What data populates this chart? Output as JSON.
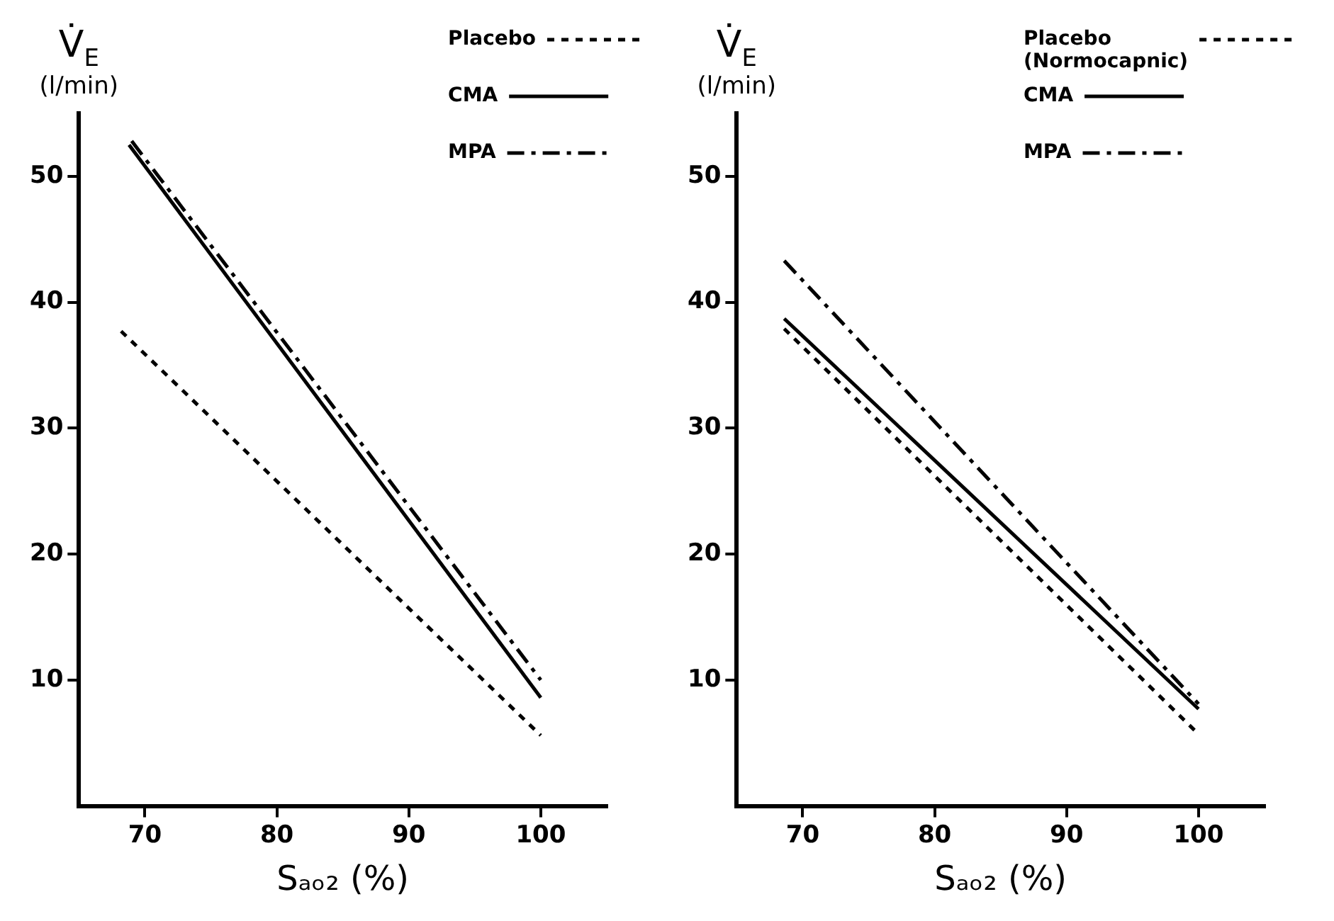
{
  "chart_data": [
    {
      "type": "line",
      "xlabel": "Sₐₒ₂ (%)",
      "ylabel": "V̇$_{E}$ (l/min)",
      "xlim": [
        65,
        105
      ],
      "ylim": [
        0,
        55
      ],
      "xticks": [
        70,
        80,
        90,
        100
      ],
      "yticks": [
        10,
        20,
        30,
        40,
        50
      ],
      "grid": false,
      "legend": "top right",
      "marker": "none",
      "series": [
        {
          "name": "Placebo",
          "color": "#000000",
          "line_style": "dotted",
          "x": [
            68.2,
            100
          ],
          "values": [
            37.7,
            5.6
          ]
        },
        {
          "name": "CMA",
          "color": "#000000",
          "line_style": "solid",
          "x": [
            68.8,
            100
          ],
          "values": [
            52.5,
            8.6
          ]
        },
        {
          "name": "MPA",
          "color": "#000000",
          "line_style": "dashdot",
          "x": [
            69,
            100
          ],
          "values": [
            52.8,
            10.0
          ]
        }
      ]
    },
    {
      "type": "line",
      "xlabel": "Sₐₒ₂ (%)",
      "ylabel": "V̇$_{E}$ (l/min)",
      "xlim": [
        65,
        105
      ],
      "ylim": [
        0,
        55
      ],
      "xticks": [
        70,
        80,
        90,
        100
      ],
      "yticks": [
        10,
        20,
        30,
        40,
        50
      ],
      "grid": false,
      "legend": "top right",
      "marker": "none",
      "series": [
        {
          "name": "Placebo (Normocapnic)",
          "color": "#000000",
          "line_style": "dotted",
          "x": [
            68.6,
            100
          ],
          "values": [
            37.9,
            5.7
          ]
        },
        {
          "name": "CMA",
          "color": "#000000",
          "line_style": "solid",
          "x": [
            68.6,
            100
          ],
          "values": [
            38.7,
            7.7
          ]
        },
        {
          "name": "MPA",
          "color": "#000000",
          "line_style": "dashdot",
          "x": [
            68.6,
            100
          ],
          "values": [
            43.3,
            8.1
          ]
        }
      ]
    }
  ]
}
